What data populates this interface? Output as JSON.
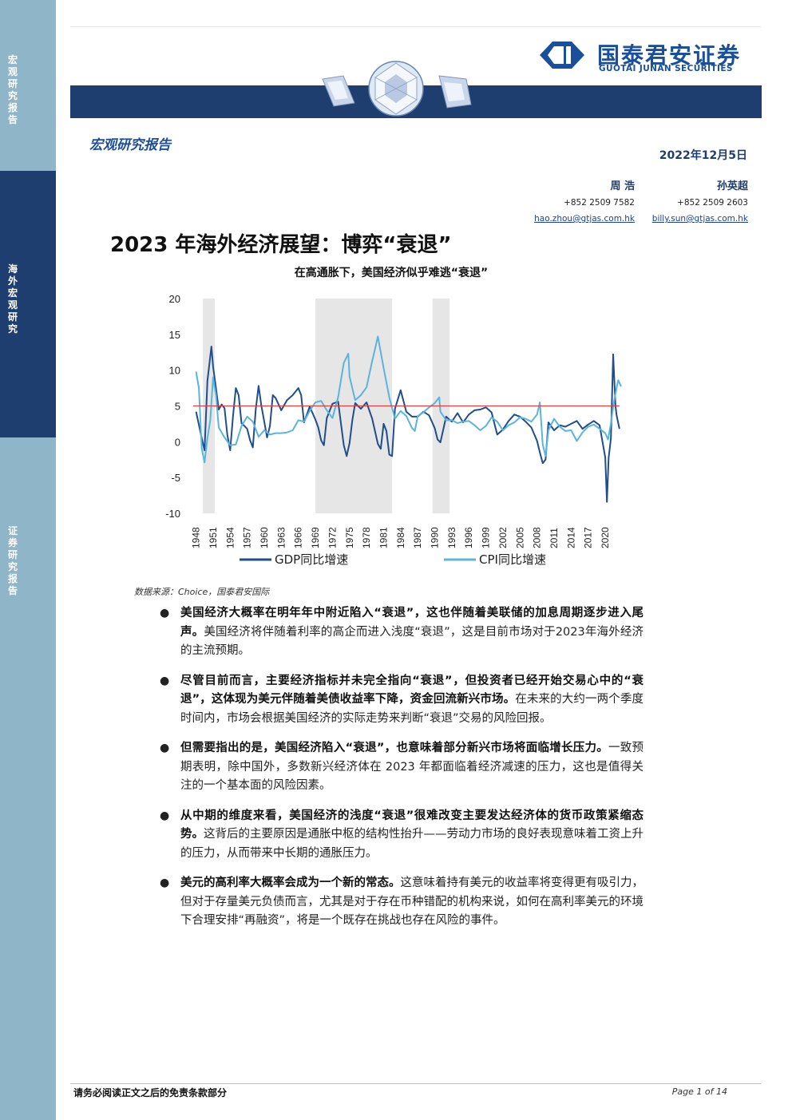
{
  "sidebar": {
    "section1": "宏观研究报告",
    "section2": "海外宏观研究",
    "section3": "证券研究报告"
  },
  "header": {
    "logo_cn": "国泰君安证券",
    "logo_en": "GUOTAI JUNAN SECURITIES",
    "report_type": "宏观研究报告",
    "date": "2022年12月5日"
  },
  "authors": [
    {
      "name": "周 浩",
      "phone": "+852 2509 7582",
      "email": "hao.zhou@gtjas.com.hk"
    },
    {
      "name": "孙英超",
      "phone": "+852 2509 2603",
      "email": "billy.sun@gtjas.com.hk"
    }
  ],
  "title": "2023 年海外经济展望：博弈“衰退”",
  "chart_caption": "在高通胀下，美国经济似乎难逃“衰退”",
  "chart_data": {
    "type": "line",
    "ylim": [
      -10,
      20
    ],
    "yticks": [
      "20",
      "15",
      "10",
      "5",
      "0",
      "-5",
      "-10"
    ],
    "xticks": [
      "1948",
      "1951",
      "1954",
      "1957",
      "1960",
      "1963",
      "1966",
      "1969",
      "1972",
      "1975",
      "1978",
      "1981",
      "1984",
      "1987",
      "1990",
      "1993",
      "1996",
      "1999",
      "2002",
      "2005",
      "2008",
      "2011",
      "2014",
      "2017",
      "2020"
    ],
    "x_range": [
      1947.5,
      2022.8
    ],
    "reference_line": 5,
    "shaded_periods": [
      [
        1949.2,
        1951.3
      ],
      [
        1969.0,
        1982.5
      ],
      [
        1989.6,
        1992.6
      ]
    ],
    "series": [
      {
        "name": "GDP同比增速",
        "color": "#1f4e8c",
        "x": [
          1948,
          1949,
          1949.5,
          1950,
          1950.7,
          1951,
          1951.5,
          1952,
          1952.5,
          1953,
          1953.5,
          1954,
          1954.5,
          1955,
          1955.5,
          1956,
          1956.5,
          1957,
          1957.5,
          1958,
          1958.5,
          1959,
          1959.5,
          1960,
          1960.5,
          1961,
          1961.5,
          1962,
          1963,
          1964,
          1965,
          1966,
          1966.5,
          1967,
          1968,
          1969,
          1969.5,
          1970,
          1970.5,
          1971,
          1972,
          1973,
          1974,
          1974.5,
          1975,
          1975.5,
          1976,
          1977,
          1978,
          1979,
          1980,
          1980.5,
          1981,
          1981.5,
          1982,
          1982.5,
          1983,
          1984,
          1985,
          1986,
          1987,
          1988,
          1989,
          1990,
          1990.5,
          1991,
          1992,
          1993,
          1994,
          1995,
          1996,
          1997,
          1998,
          1999,
          2000,
          2001,
          2002,
          2003,
          2004,
          2005,
          2006,
          2007,
          2008,
          2008.5,
          2009,
          2009.5,
          2010,
          2011,
          2012,
          2013,
          2014,
          2015,
          2016,
          2017,
          2018,
          2019,
          2020,
          2020.3,
          2020.6,
          2021,
          2021.4,
          2021.8,
          2022,
          2022.5
        ],
        "y": [
          4.2,
          0.5,
          -1.2,
          8.5,
          13.3,
          10.5,
          7.5,
          4.5,
          5.2,
          4.7,
          1.0,
          -1.2,
          3.5,
          7.5,
          6.5,
          2.6,
          2.2,
          1.8,
          0.2,
          -0.8,
          4.5,
          7.8,
          5.0,
          2.8,
          0.6,
          2.2,
          6.5,
          6.1,
          4.4,
          5.8,
          6.5,
          7.5,
          6.5,
          2.7,
          4.9,
          3.1,
          2.0,
          0.2,
          -0.5,
          3.3,
          5.3,
          5.6,
          -0.5,
          -2.0,
          -0.2,
          3.0,
          5.4,
          4.6,
          5.5,
          3.2,
          -0.3,
          -1.0,
          2.5,
          1.5,
          -1.8,
          -2.0,
          4.6,
          7.2,
          4.2,
          3.5,
          3.5,
          4.2,
          3.7,
          1.9,
          0.3,
          -0.1,
          3.5,
          2.8,
          4.0,
          2.7,
          3.8,
          4.4,
          4.5,
          4.8,
          4.1,
          1.0,
          1.7,
          2.9,
          3.8,
          3.5,
          2.8,
          2.0,
          0.1,
          -1.5,
          -3.0,
          -2.5,
          2.7,
          1.6,
          2.3,
          2.1,
          2.5,
          2.9,
          1.8,
          2.4,
          2.9,
          2.3,
          -2.2,
          -8.4,
          -2.3,
          0.5,
          12.2,
          5.0,
          3.7,
          1.8
        ]
      },
      {
        "name": "CPI同比增速",
        "color": "#5bb4dc",
        "x": [
          1948,
          1948.5,
          1949,
          1949.5,
          1950,
          1950.5,
          1951,
          1951.5,
          1952,
          1953,
          1954,
          1955,
          1956,
          1957,
          1958,
          1959,
          1960,
          1961,
          1962,
          1963,
          1964,
          1965,
          1966,
          1967,
          1968,
          1969,
          1970,
          1971,
          1972,
          1973,
          1974,
          1974.8,
          1975,
          1976,
          1977,
          1978,
          1979,
          1979.5,
          1980,
          1980.5,
          1981,
          1982,
          1983,
          1984,
          1985,
          1986,
          1986.5,
          1987,
          1988,
          1989,
          1990,
          1990.8,
          1991,
          1992,
          1993,
          1994,
          1995,
          1996,
          1997,
          1998,
          1999,
          2000,
          2001,
          2002,
          2003,
          2004,
          2005,
          2006,
          2007,
          2008,
          2008.5,
          2009,
          2009.5,
          2010,
          2011,
          2012,
          2013,
          2014,
          2015,
          2016,
          2017,
          2018,
          2019,
          2020,
          2020.5,
          2021,
          2021.5,
          2022,
          2022.3,
          2022.8
        ],
        "y": [
          9.8,
          7.5,
          -1.0,
          -2.9,
          0.5,
          3.0,
          9.0,
          6.5,
          2.0,
          0.6,
          -0.5,
          -0.4,
          2.2,
          3.5,
          2.8,
          0.7,
          1.6,
          1.0,
          1.2,
          1.2,
          1.3,
          1.6,
          3.0,
          2.8,
          4.3,
          5.5,
          5.7,
          4.4,
          3.3,
          6.2,
          11.0,
          12.3,
          9.1,
          5.8,
          6.5,
          7.6,
          11.3,
          13.0,
          14.7,
          12.5,
          10.3,
          6.2,
          3.2,
          4.3,
          3.6,
          1.9,
          1.5,
          3.6,
          4.1,
          4.8,
          5.4,
          6.2,
          4.2,
          3.0,
          3.0,
          2.6,
          2.8,
          2.9,
          2.3,
          1.6,
          2.2,
          3.4,
          2.8,
          1.6,
          2.3,
          2.7,
          3.4,
          3.2,
          2.8,
          3.8,
          5.5,
          -0.4,
          -2.0,
          1.6,
          3.2,
          2.1,
          1.5,
          1.6,
          0.1,
          1.3,
          2.1,
          2.4,
          1.8,
          1.2,
          0.3,
          2.6,
          5.4,
          7.5,
          8.6,
          7.7
        ]
      }
    ]
  },
  "source": "数据来源：Choice，国泰君安国际",
  "bullets": [
    {
      "bold": "美国经济大概率在明年年中附近陷入“衰退”，这也伴随着美联储的加息周期逐步进入尾声。",
      "rest": "美国经济将伴随着利率的高企而进入浅度“衰退”，这是目前市场对于2023年海外经济的主流预期。"
    },
    {
      "bold": "尽管目前而言，主要经济指标并未完全指向“衰退”，但投资者已经开始交易心中的“衰退”，这体现为美元伴随着美债收益率下降，资金回流新兴市场。",
      "rest": "在未来的大约一两个季度时间内，市场会根据美国经济的实际走势来判断“衰退”交易的风险回报。"
    },
    {
      "bold": "但需要指出的是，美国经济陷入“衰退”，也意味着部分新兴市场将面临增长压力。",
      "rest": "一致预期表明，除中国外，多数新兴经济体在 2023 年都面临着经济减速的压力，这也是值得关注的一个基本面的风险因素。"
    },
    {
      "bold": "从中期的维度来看，美国经济的浅度“衰退”很难改变主要发达经济体的货币政策紧缩态势。",
      "rest": "这背后的主要原因是通胀中枢的结构性抬升——劳动力市场的良好表现意味着工资上升的压力，从而带来中长期的通胀压力。"
    },
    {
      "bold": "美元的高利率大概率会成为一个新的常态。",
      "rest": "这意味着持有美元的收益率将变得更有吸引力，但对于存量美元负债而言，尤其是对于存在币种错配的机构来说，如何在高利率美元的环境下合理安排“再融资”，将是一个既存在挑战也存在风险的事件。"
    }
  ],
  "footer": {
    "disclaimer": "请务必阅读正文之后的免责条款部分",
    "page": "Page 1 of 14"
  },
  "colors": {
    "navy": "#1d3e6e",
    "sidebar_light": "#8fb6c8",
    "reference_line": "#e04040",
    "shade": "#e6e6e6"
  }
}
